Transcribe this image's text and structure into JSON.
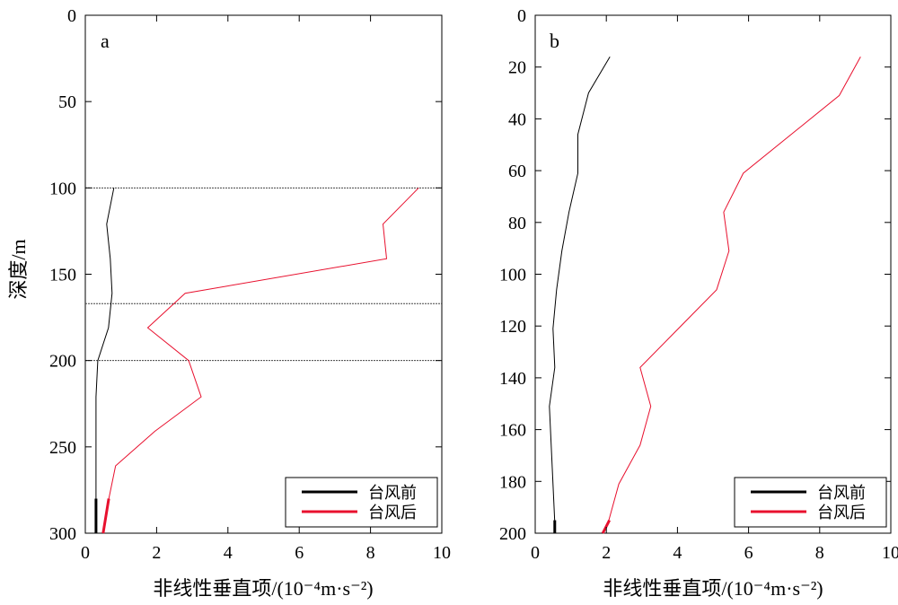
{
  "chart_data": [
    {
      "type": "line",
      "panel_label": "a",
      "xlabel": "非线性垂直项/(10⁻⁴m·s⁻²)",
      "ylabel": "深度/m",
      "xlim": [
        0,
        10
      ],
      "ylim": [
        300,
        0
      ],
      "x_ticks": [
        "0",
        "2",
        "4",
        "6",
        "8",
        "10"
      ],
      "y_ticks": [
        "0",
        "50",
        "100",
        "150",
        "200",
        "250",
        "300"
      ],
      "reference_lines_depth": [
        100,
        167,
        200
      ],
      "legend_position": "bottom-right",
      "series": [
        {
          "name": "台风前",
          "color": "#000000",
          "points": [
            [
              0.8,
              100
            ],
            [
              0.6,
              121
            ],
            [
              0.7,
              141
            ],
            [
              0.75,
              161
            ],
            [
              0.65,
              181
            ],
            [
              0.35,
              200
            ],
            [
              0.3,
              221
            ],
            [
              0.3,
              241
            ],
            [
              0.3,
              261
            ],
            [
              0.3,
              281
            ],
            [
              0.3,
              300
            ]
          ]
        },
        {
          "name": "台风后",
          "color": "#e8102e",
          "points": [
            [
              9.35,
              100
            ],
            [
              8.35,
              121
            ],
            [
              8.45,
              141
            ],
            [
              2.8,
              161
            ],
            [
              1.75,
              181
            ],
            [
              2.9,
              200
            ],
            [
              3.25,
              221
            ],
            [
              1.95,
              241
            ],
            [
              0.85,
              261
            ],
            [
              0.65,
              281
            ],
            [
              0.5,
              300
            ]
          ]
        }
      ]
    },
    {
      "type": "line",
      "panel_label": "b",
      "xlabel": "非线性垂直项/(10⁻⁴m·s⁻²)",
      "ylabel": "",
      "xlim": [
        0,
        10
      ],
      "ylim": [
        200,
        0
      ],
      "x_ticks": [
        "0",
        "2",
        "4",
        "6",
        "8",
        "10"
      ],
      "y_ticks": [
        "0",
        "20",
        "40",
        "60",
        "80",
        "100",
        "120",
        "140",
        "160",
        "180",
        "200"
      ],
      "legend_position": "bottom-right",
      "series": [
        {
          "name": "台风前",
          "color": "#000000",
          "points": [
            [
              2.1,
              16
            ],
            [
              1.5,
              30
            ],
            [
              1.2,
              46
            ],
            [
              1.2,
              61
            ],
            [
              0.95,
              76
            ],
            [
              0.75,
              91
            ],
            [
              0.6,
              106
            ],
            [
              0.5,
              121
            ],
            [
              0.55,
              136
            ],
            [
              0.4,
              151
            ],
            [
              0.45,
              166
            ],
            [
              0.5,
              181
            ],
            [
              0.55,
              196
            ],
            [
              0.55,
              200
            ]
          ]
        },
        {
          "name": "台风后",
          "color": "#e8102e",
          "points": [
            [
              9.15,
              16
            ],
            [
              8.55,
              31
            ],
            [
              5.85,
              61
            ],
            [
              5.3,
              76
            ],
            [
              5.45,
              91
            ],
            [
              5.1,
              106
            ],
            [
              2.95,
              136
            ],
            [
              3.25,
              151
            ],
            [
              2.95,
              166
            ],
            [
              2.35,
              181
            ],
            [
              2.05,
              196
            ],
            [
              1.9,
              200
            ]
          ]
        }
      ]
    }
  ]
}
